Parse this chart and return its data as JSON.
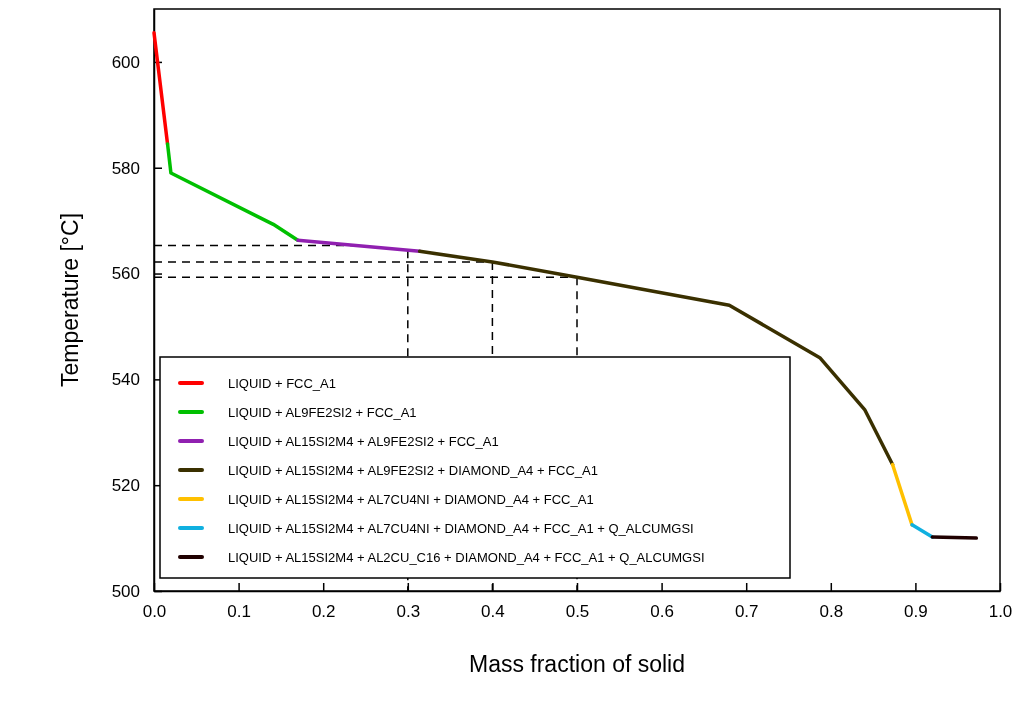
{
  "chart_data": {
    "type": "line",
    "xlabel": "Mass fraction of solid",
    "ylabel": "Temperature [°C]",
    "xlim": [
      0,
      1
    ],
    "ylim": [
      500,
      610
    ],
    "xticks": [
      {
        "value": 0,
        "label": "0.0"
      },
      {
        "value": 0.1,
        "label": "0.1"
      },
      {
        "value": 0.2,
        "label": "0.2"
      },
      {
        "value": 0.3,
        "label": "0.3"
      },
      {
        "value": 0.4,
        "label": "0.4"
      },
      {
        "value": 0.5,
        "label": "0.5"
      },
      {
        "value": 0.6,
        "label": "0.6"
      },
      {
        "value": 0.7,
        "label": "0.7"
      },
      {
        "value": 0.8,
        "label": "0.8"
      },
      {
        "value": 0.9,
        "label": "0.9"
      },
      {
        "value": 1,
        "label": "1.0"
      }
    ],
    "yticks": [
      500,
      520,
      540,
      560,
      580,
      600
    ],
    "legend": "bottom left",
    "grid": false,
    "marker": "none",
    "line_style": "solid",
    "series": [
      {
        "name": "LIQUID + FCC_A1",
        "color": "#ff0000",
        "x": [
          0,
          0.016
        ],
        "values": [
          605.5,
          584.5
        ]
      },
      {
        "name": "LIQUID + AL9FE2SI2 + FCC_A1",
        "color": "#00c000",
        "x": [
          0.016,
          0.02,
          0.141,
          0.17
        ],
        "values": [
          584.5,
          579,
          569.3,
          566.3
        ]
      },
      {
        "name": "LIQUID + AL15SI2M4 + AL9FE2SI2 + FCC_A1",
        "color": "#9020b0",
        "x": [
          0.17,
          0.314
        ],
        "values": [
          566.3,
          564.2
        ]
      },
      {
        "name": "LIQUID + AL15SI2M4 + AL9FE2SI2 + DIAMOND_A4 + FCC_A1",
        "color": "#3a3000",
        "x": [
          0.314,
          0.4,
          0.5,
          0.68,
          0.787,
          0.84,
          0.873
        ],
        "values": [
          564.2,
          562.2,
          559.3,
          554,
          544.1,
          534.3,
          523.9
        ]
      },
      {
        "name": "LIQUID + AL15SI2M4 + AL7CU4NI + DIAMOND_A4 + FCC_A1",
        "color": "#ffc000",
        "x": [
          0.873,
          0.896
        ],
        "values": [
          523.9,
          512.5
        ]
      },
      {
        "name": "LIQUID + AL15SI2M4 + AL7CU4NI + DIAMOND_A4 + FCC_A1 + Q_ALCUMGSI",
        "color": "#10b0e0",
        "x": [
          0.896,
          0.92
        ],
        "values": [
          512.5,
          510.2
        ]
      },
      {
        "name": "LIQUID + AL15SI2M4 + AL2CU_C16 + DIAMOND_A4 + FCC_A1 + Q_ALCUMGSI",
        "color": "#200000",
        "x": [
          0.92,
          0.972
        ],
        "values": [
          510.2,
          510
        ]
      }
    ],
    "ref_lines": [
      {
        "axis": "y",
        "value": 565.3,
        "line_style": "dashed",
        "color": "#000000"
      },
      {
        "axis": "y",
        "value": 562.2,
        "line_style": "dashed",
        "color": "#000000"
      },
      {
        "axis": "y",
        "value": 559.3,
        "line_style": "dashed",
        "color": "#000000"
      },
      {
        "axis": "x",
        "value": 0.3,
        "line_style": "dashed",
        "color": "#000000"
      },
      {
        "axis": "x",
        "value": 0.4,
        "line_style": "dashed",
        "color": "#000000"
      },
      {
        "axis": "x",
        "value": 0.5,
        "line_style": "dashed",
        "color": "#000000"
      }
    ]
  }
}
